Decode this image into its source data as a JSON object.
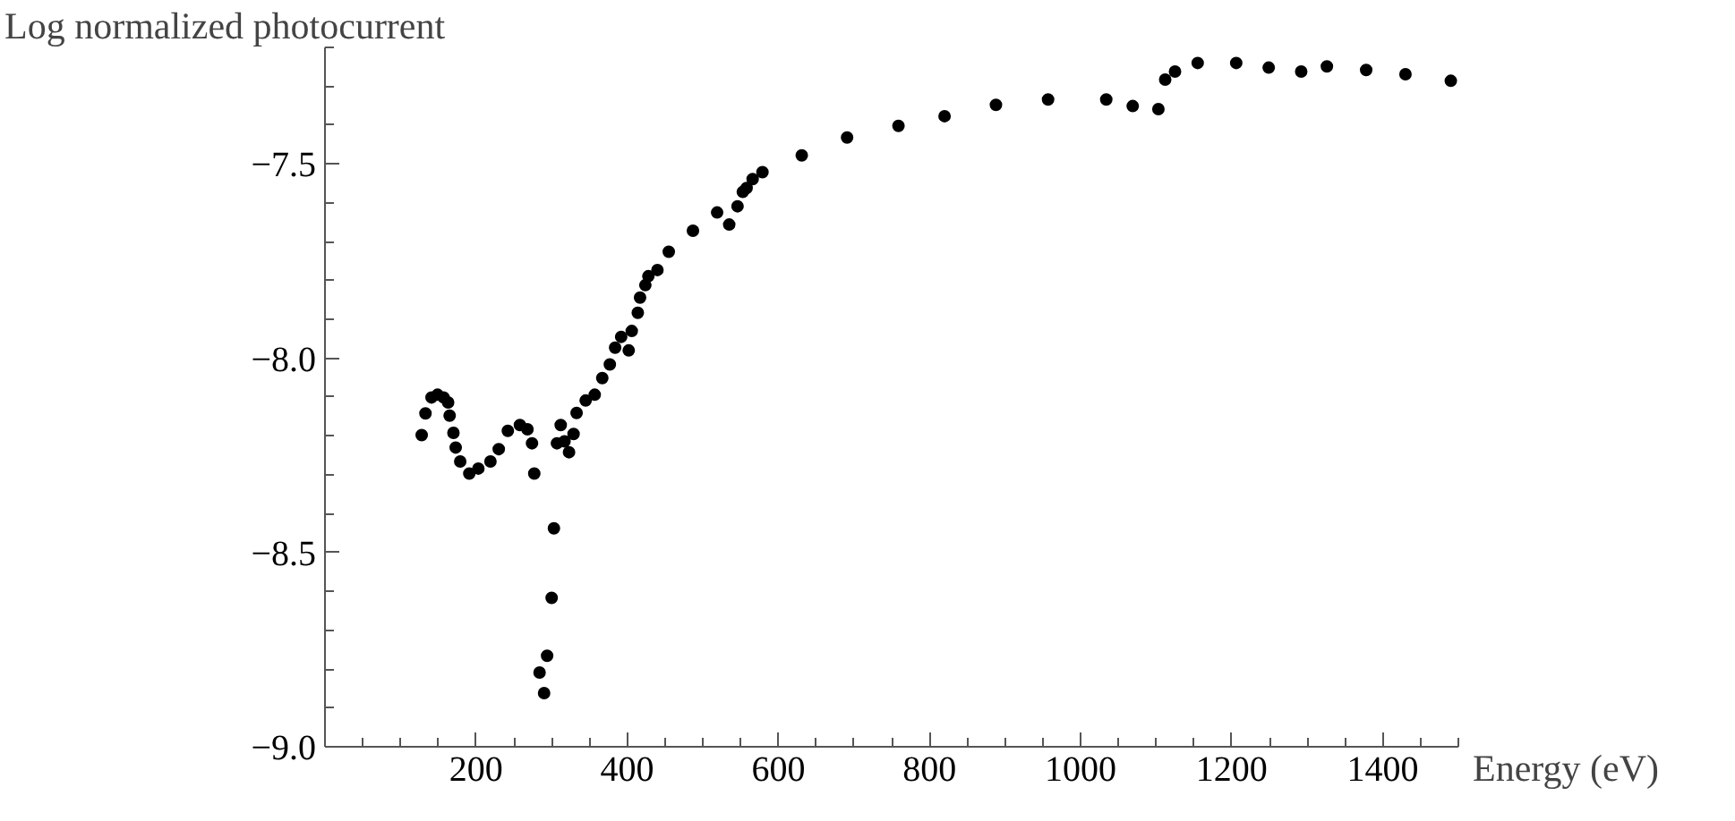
{
  "chart_data": {
    "type": "scatter",
    "xlabel": "Energy (eV)",
    "ylabel": "Log normalized photocurrent",
    "xlim": [
      0,
      1500
    ],
    "ylim": [
      -9.0,
      -7.2
    ],
    "xticks": [
      200,
      400,
      600,
      800,
      1000,
      1200,
      1400
    ],
    "yticks": [
      {
        "value": -9.0,
        "label": "−9.0"
      },
      {
        "value": -8.5,
        "label": "−8.5"
      },
      {
        "value": -8.0,
        "label": "−8.0"
      },
      {
        "value": -7.5,
        "label": "−7.5"
      }
    ],
    "grid": false,
    "marker": "circle",
    "series": [
      {
        "color": "#000000",
        "x": [
          128,
          133,
          141,
          149,
          157,
          163,
          165,
          170,
          173,
          179,
          191,
          203,
          219,
          230,
          242,
          258,
          268,
          274,
          277,
          284,
          290,
          294,
          300,
          303,
          307,
          312,
          317,
          323,
          329,
          333,
          345,
          357,
          367,
          377,
          384,
          392,
          402,
          406,
          414,
          417,
          424,
          428,
          440,
          455,
          487,
          519,
          535,
          546,
          553,
          558,
          566,
          579,
          631,
          691,
          759,
          820,
          888,
          957,
          1034,
          1069,
          1103,
          1112,
          1125,
          1155,
          1206,
          1249,
          1292,
          1326,
          1378,
          1430,
          1490
        ],
        "values": [
          -8.198,
          -8.142,
          -8.101,
          -8.094,
          -8.101,
          -8.114,
          -8.148,
          -8.192,
          -8.23,
          -8.266,
          -8.297,
          -8.284,
          -8.266,
          -8.234,
          -8.187,
          -8.172,
          -8.183,
          -8.219,
          -8.297,
          -8.809,
          -8.862,
          -8.766,
          -8.617,
          -8.438,
          -8.219,
          -8.172,
          -8.214,
          -8.242,
          -8.195,
          -8.141,
          -8.109,
          -8.094,
          -8.051,
          -8.016,
          -7.973,
          -7.945,
          -7.98,
          -7.93,
          -7.883,
          -7.844,
          -7.812,
          -7.789,
          -7.773,
          -7.726,
          -7.672,
          -7.625,
          -7.656,
          -7.609,
          -7.572,
          -7.562,
          -7.539,
          -7.521,
          -7.478,
          -7.432,
          -7.402,
          -7.377,
          -7.348,
          -7.334,
          -7.334,
          -7.351,
          -7.359,
          -7.283,
          -7.262,
          -7.24,
          -7.24,
          -7.252,
          -7.262,
          -7.249,
          -7.258,
          -7.269,
          -7.286
        ]
      }
    ]
  }
}
